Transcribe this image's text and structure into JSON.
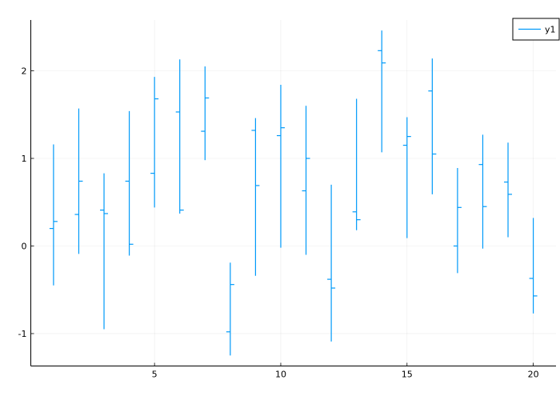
{
  "chart_data": {
    "type": "ohlc",
    "title": "",
    "xlabel": "",
    "ylabel": "",
    "xlim": [
      0.1,
      20.9
    ],
    "ylim": [
      -1.37,
      2.58
    ],
    "xticks": [
      5,
      10,
      15,
      20
    ],
    "yticks": [
      -1,
      0,
      1,
      2
    ],
    "xtick_labels": [
      "5",
      "10",
      "15",
      "20"
    ],
    "ytick_labels": [
      "-1",
      "0",
      "1",
      "2"
    ],
    "grid": true,
    "legend": {
      "position": "top-right"
    },
    "series": [
      {
        "name": "y1",
        "color": "#009af9",
        "points": [
          {
            "x": 1,
            "open": 0.2,
            "high": 1.16,
            "low": -0.45,
            "close": 0.28
          },
          {
            "x": 2,
            "open": 0.36,
            "high": 1.57,
            "low": -0.09,
            "close": 0.74
          },
          {
            "x": 3,
            "open": 0.41,
            "high": 0.83,
            "low": -0.95,
            "close": 0.37
          },
          {
            "x": 4,
            "open": 0.74,
            "high": 1.54,
            "low": -0.11,
            "close": 0.02
          },
          {
            "x": 5,
            "open": 0.83,
            "high": 1.93,
            "low": 0.44,
            "close": 1.68
          },
          {
            "x": 6,
            "open": 1.53,
            "high": 2.13,
            "low": 0.37,
            "close": 0.41
          },
          {
            "x": 7,
            "open": 1.31,
            "high": 2.05,
            "low": 0.98,
            "close": 1.69
          },
          {
            "x": 8,
            "open": -0.98,
            "high": -0.19,
            "low": -1.25,
            "close": -0.44
          },
          {
            "x": 9,
            "open": 1.32,
            "high": 1.46,
            "low": -0.34,
            "close": 0.69
          },
          {
            "x": 10,
            "open": 1.26,
            "high": 1.84,
            "low": -0.02,
            "close": 1.35
          },
          {
            "x": 11,
            "open": 0.63,
            "high": 1.6,
            "low": -0.1,
            "close": 1.0
          },
          {
            "x": 12,
            "open": -0.38,
            "high": 0.7,
            "low": -1.09,
            "close": -0.48
          },
          {
            "x": 13,
            "open": 0.39,
            "high": 1.68,
            "low": 0.18,
            "close": 0.3
          },
          {
            "x": 14,
            "open": 2.23,
            "high": 2.46,
            "low": 1.07,
            "close": 2.09
          },
          {
            "x": 15,
            "open": 1.15,
            "high": 1.47,
            "low": 0.09,
            "close": 1.25
          },
          {
            "x": 16,
            "open": 1.77,
            "high": 2.14,
            "low": 0.59,
            "close": 1.05
          },
          {
            "x": 17,
            "open": 0.0,
            "high": 0.89,
            "low": -0.31,
            "close": 0.44
          },
          {
            "x": 18,
            "open": 0.93,
            "high": 1.27,
            "low": -0.03,
            "close": 0.45
          },
          {
            "x": 19,
            "open": 0.73,
            "high": 1.18,
            "low": 0.1,
            "close": 0.59
          },
          {
            "x": 20,
            "open": -0.37,
            "high": 0.32,
            "low": -0.77,
            "close": -0.57
          }
        ]
      }
    ]
  }
}
